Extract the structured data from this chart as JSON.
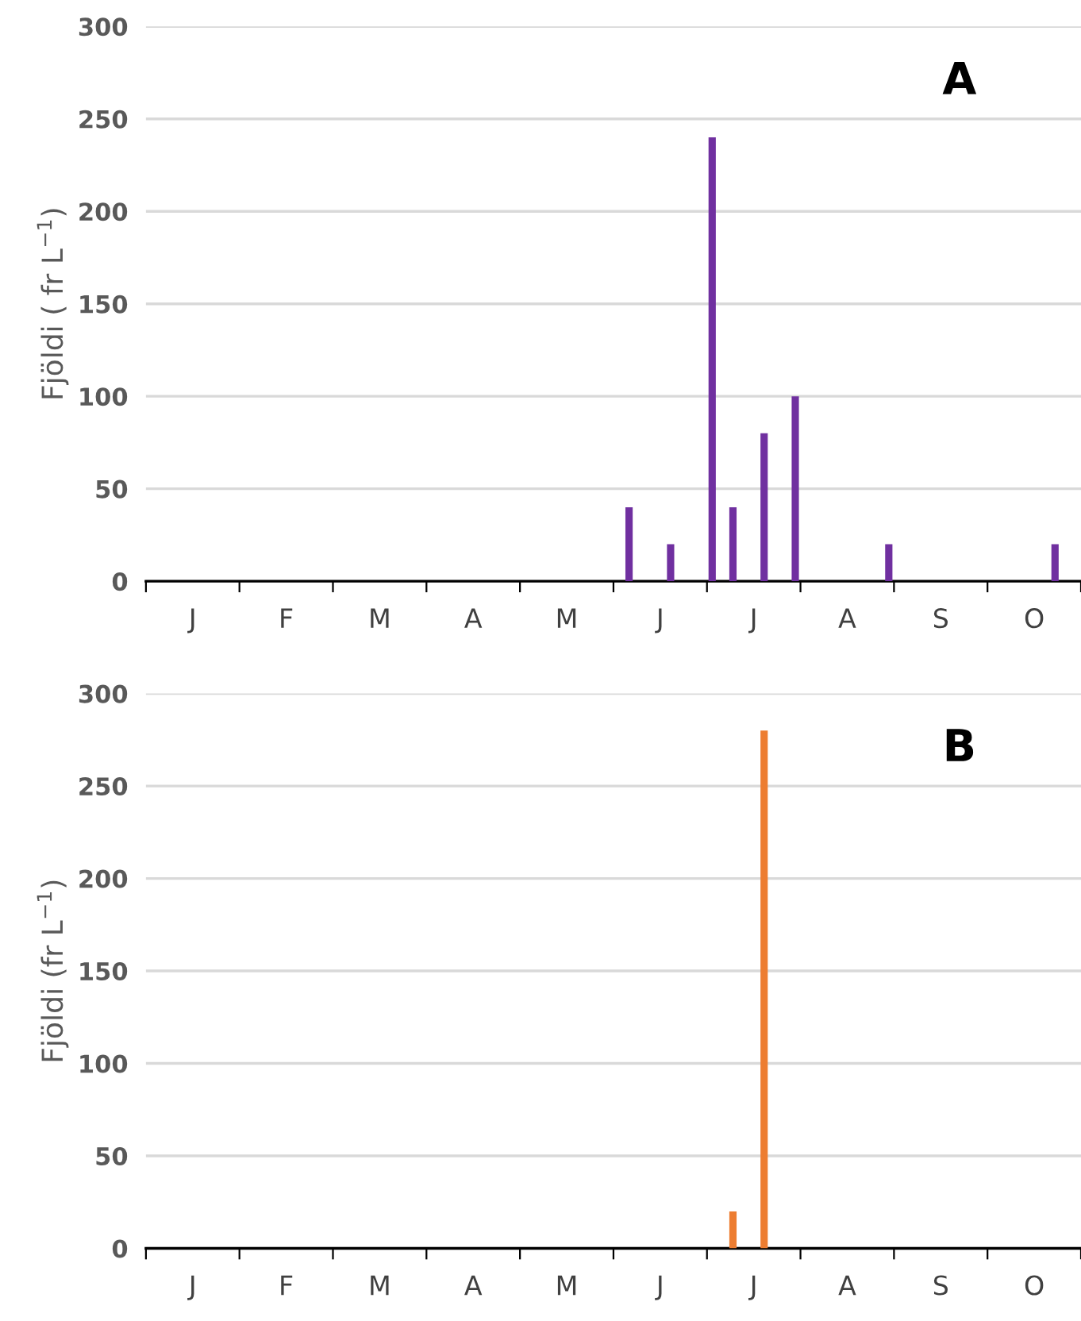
{
  "chart_data": [
    {
      "type": "bar",
      "ylabel": "Fjöldi ( fr L$^{−1}$)",
      "annotations": [
        "A"
      ],
      "color": "#7030a0",
      "grid": "y",
      "legend": false,
      "categories": [
        null,
        null,
        null,
        null,
        "J",
        null,
        null,
        null,
        null,
        null,
        null,
        null,
        null,
        "F",
        null,
        null,
        null,
        null,
        null,
        null,
        null,
        null,
        "M",
        null,
        null,
        null,
        null,
        null,
        null,
        null,
        null,
        "A",
        null,
        null,
        null,
        null,
        null,
        null,
        null,
        null,
        "M",
        null,
        null,
        null,
        null,
        null,
        null,
        null,
        null,
        "J",
        null,
        null,
        null,
        null,
        null,
        null,
        null,
        null,
        "J",
        null,
        null,
        null,
        null,
        null,
        null,
        null,
        null,
        "A",
        null,
        null,
        null,
        null,
        null,
        null,
        null,
        null,
        "S",
        null,
        null,
        null,
        null,
        null,
        null,
        null,
        null,
        "O",
        null,
        null,
        null,
        null
      ],
      "values": [
        null,
        null,
        null,
        null,
        null,
        null,
        null,
        null,
        null,
        null,
        null,
        null,
        null,
        null,
        null,
        null,
        null,
        null,
        null,
        null,
        null,
        null,
        null,
        null,
        null,
        null,
        null,
        null,
        null,
        null,
        null,
        null,
        null,
        null,
        null,
        null,
        null,
        null,
        null,
        null,
        null,
        null,
        null,
        null,
        null,
        null,
        40,
        null,
        null,
        null,
        20,
        null,
        null,
        null,
        240,
        null,
        40,
        null,
        null,
        80,
        null,
        null,
        100,
        null,
        null,
        null,
        null,
        null,
        null,
        null,
        null,
        20,
        null,
        null,
        null,
        null,
        null,
        null,
        null,
        null,
        null,
        null,
        null,
        null,
        null,
        null,
        null,
        20,
        null,
        null
      ],
      "ylim": [
        0,
        300
      ],
      "yticks": [
        0,
        50,
        100,
        150,
        200,
        250,
        300
      ]
    },
    {
      "type": "bar",
      "ylabel": "Fjöldi (fr L$^{−1}$)",
      "annotations": [
        "B"
      ],
      "color": "#ed7d31",
      "grid": "y",
      "legend": false,
      "categories": [
        null,
        null,
        null,
        null,
        "J",
        null,
        null,
        null,
        null,
        null,
        null,
        null,
        null,
        "F",
        null,
        null,
        null,
        null,
        null,
        null,
        null,
        null,
        "M",
        null,
        null,
        null,
        null,
        null,
        null,
        null,
        null,
        "A",
        null,
        null,
        null,
        null,
        null,
        null,
        null,
        null,
        "M",
        null,
        null,
        null,
        null,
        null,
        null,
        null,
        null,
        "J",
        null,
        null,
        null,
        null,
        null,
        null,
        null,
        null,
        "J",
        null,
        null,
        null,
        null,
        null,
        null,
        null,
        null,
        "A",
        null,
        null,
        null,
        null,
        null,
        null,
        null,
        null,
        "S",
        null,
        null,
        null,
        null,
        null,
        null,
        null,
        null,
        "O",
        null,
        null,
        null,
        null
      ],
      "values": [
        null,
        null,
        null,
        null,
        null,
        null,
        null,
        null,
        null,
        null,
        null,
        null,
        null,
        null,
        null,
        null,
        null,
        null,
        null,
        null,
        null,
        null,
        null,
        null,
        null,
        null,
        null,
        null,
        null,
        null,
        null,
        null,
        null,
        null,
        null,
        null,
        null,
        null,
        null,
        null,
        null,
        null,
        null,
        null,
        null,
        null,
        null,
        null,
        null,
        null,
        null,
        null,
        null,
        null,
        null,
        null,
        20,
        null,
        null,
        280,
        null,
        null,
        null,
        null,
        null,
        null,
        null,
        null,
        null,
        null,
        null,
        null,
        null,
        null,
        null,
        null,
        null,
        null,
        null,
        null,
        null,
        null,
        null,
        null,
        null,
        null,
        null,
        null,
        null,
        null
      ],
      "ylim": [
        0,
        300
      ],
      "yticks": [
        0,
        50,
        100,
        150,
        200,
        250,
        300
      ]
    }
  ]
}
